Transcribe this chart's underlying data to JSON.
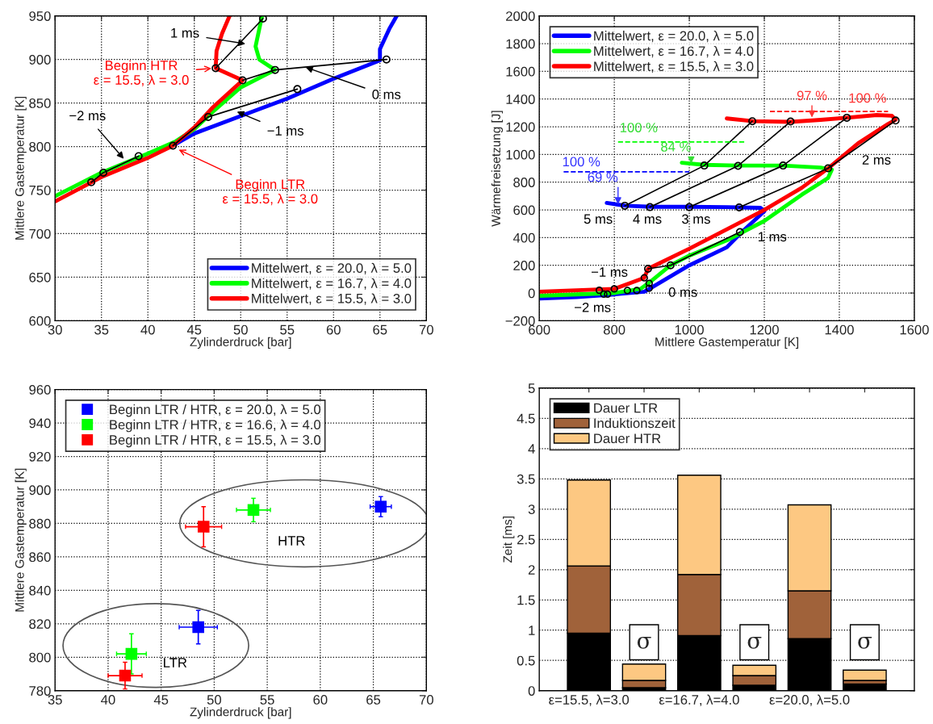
{
  "chart_data": [
    {
      "type": "line",
      "xlabel": "Zylinderdruck [bar]",
      "ylabel": "Mittlere Gastemperatur [K]",
      "xlim": [
        30,
        70
      ],
      "ylim": [
        600,
        950
      ],
      "xticks": [
        30,
        35,
        40,
        45,
        50,
        55,
        60,
        65,
        70
      ],
      "yticks": [
        600,
        650,
        700,
        750,
        800,
        850,
        900,
        950
      ],
      "grid": true,
      "legend": "bottom right",
      "series": [
        {
          "name": "Mittelwert, ε = 20.0, λ = 5.0",
          "color": "#0000ff",
          "x": [
            43,
            45,
            50,
            55,
            60,
            65,
            65,
            66,
            66.8
          ],
          "values": [
            803,
            815,
            835,
            855,
            878,
            899,
            912,
            935,
            950
          ]
        },
        {
          "name": "Mittelwert, ε = 16.7, λ = 4.0",
          "color": "#00ff00",
          "x": [
            30,
            35,
            40,
            43,
            45,
            47,
            50,
            53.7,
            52,
            51.6,
            52.3
          ],
          "values": [
            743,
            770,
            792,
            806,
            820,
            840,
            868,
            888,
            900,
            915,
            950
          ]
        },
        {
          "name": "Mittelwert, ε = 15.5, λ = 3.0",
          "color": "#ff0000",
          "x": [
            30,
            35,
            40,
            42.7,
            45,
            47,
            50.2,
            47.3,
            47.4,
            48,
            48.8
          ],
          "values": [
            737,
            765,
            787,
            801,
            822,
            845,
            876,
            890,
            910,
            930,
            950
          ]
        },
        {
          "type": "line",
          "color": "#000000",
          "marker": "circle",
          "x": [
            33.9,
            35.2,
            39
          ],
          "values": [
            759,
            770,
            789
          ]
        },
        {
          "type": "line",
          "color": "#000000",
          "marker": "circle",
          "x": [
            42.7,
            46.5,
            56.1
          ],
          "values": [
            801,
            834,
            866
          ]
        },
        {
          "type": "line",
          "color": "#000000",
          "marker": "circle",
          "x": [
            50.2,
            53.7,
            65.7
          ],
          "values": [
            876,
            888,
            900
          ]
        },
        {
          "type": "line",
          "color": "#000000",
          "marker": "circle",
          "x": [
            47.3,
            52.4
          ],
          "values": [
            890,
            947
          ]
        }
      ],
      "annotations": [
        {
          "text": "1 ms",
          "x": 50.5,
          "y": 918
        },
        {
          "text": "Beginn HTR\nε = 15.5, λ = 3.0",
          "x": 47.2,
          "y": 890
        },
        {
          "text": "0 ms",
          "x": 57,
          "y": 891
        },
        {
          "text": "−1 ms",
          "x": 49.6,
          "y": 840
        },
        {
          "text": "−2 ms",
          "x": 37.4,
          "y": 786
        },
        {
          "text": "Beginn LTR\nε = 15.5, λ = 3.0",
          "x": 43,
          "y": 798
        }
      ]
    },
    {
      "type": "line",
      "xlabel": "Mittlere Gastemperatur [K]",
      "ylabel": "Wärmefreisetzung [J]",
      "xlim": [
        600,
        1600
      ],
      "ylim": [
        -200,
        2000
      ],
      "xticks": [
        600,
        800,
        1000,
        1200,
        1400,
        1600
      ],
      "yticks": [
        {
          "value": -200,
          "label": "−200"
        },
        0,
        200,
        400,
        600,
        800,
        1000,
        1200,
        1400,
        1600,
        1800,
        2000
      ],
      "grid": true,
      "legend": "top left",
      "series": [
        {
          "name": "Mittelwert, ε = 20.0, λ = 5.0",
          "color": "#0000ff",
          "x": [
            600,
            700,
            800,
            880,
            900,
            950,
            1000,
            1100,
            1140,
            1200,
            1190,
            1100,
            1000,
            900,
            830,
            780
          ],
          "values": [
            -40,
            -30,
            -10,
            10,
            40,
            120,
            200,
            330,
            440,
            590,
            615,
            620,
            622,
            622,
            630,
            650
          ]
        },
        {
          "name": "Mittelwert, ε = 16.7, λ = 4.0",
          "color": "#00ff00",
          "x": [
            600,
            700,
            800,
            870,
            900,
            950,
            1000,
            1100,
            1200,
            1300,
            1370,
            1380,
            1350,
            1250,
            1130,
            1040,
            980
          ],
          "values": [
            -20,
            -10,
            0,
            30,
            90,
            200,
            270,
            380,
            520,
            710,
            830,
            890,
            905,
            920,
            920,
            925,
            940
          ]
        },
        {
          "name": "Mittelwert, ε = 15.5, λ = 3.0",
          "color": "#ff0000",
          "x": [
            600,
            700,
            800,
            880,
            890,
            1000,
            1100,
            1200,
            1300,
            1370,
            1450,
            1530,
            1550,
            1540,
            1500,
            1420,
            1350,
            1270,
            1170,
            1100
          ],
          "values": [
            10,
            20,
            30,
            110,
            175,
            320,
            460,
            600,
            760,
            900,
            1080,
            1220,
            1250,
            1280,
            1285,
            1265,
            1250,
            1235,
            1240,
            1260
          ]
        },
        {
          "type": "line",
          "color": "#000000",
          "marker": "circle",
          "x": [
            828,
            1040,
            1168
          ],
          "values": [
            630,
            920,
            1240
          ]
        },
        {
          "type": "line",
          "color": "#000000",
          "marker": "circle",
          "x": [
            895,
            1130,
            1270
          ],
          "values": [
            620,
            918,
            1238
          ]
        },
        {
          "type": "line",
          "color": "#000000",
          "marker": "circle",
          "x": [
            1000,
            1250,
            1420
          ],
          "values": [
            620,
            920,
            1265
          ]
        },
        {
          "type": "line",
          "color": "#000000",
          "marker": "circle",
          "x": [
            1133,
            1370,
            1550
          ],
          "values": [
            618,
            900,
            1245
          ]
        },
        {
          "type": "line",
          "color": "#000000",
          "marker": "circle",
          "x": [
            890,
            950,
            1135
          ],
          "values": [
            175,
            200,
            440
          ]
        },
        {
          "type": "scatter",
          "color": "#000000",
          "marker": "circle",
          "x": [
            760,
            772,
            782,
            800,
            835,
            860,
            880,
            893,
            893
          ],
          "values": [
            20,
            -8,
            -8,
            30,
            18,
            18,
            110,
            70,
            35
          ]
        },
        {
          "type": "line",
          "color": "#0000ff",
          "line_style": "dashed",
          "x": [
            665,
            1000
          ],
          "values": [
            875,
            875
          ]
        },
        {
          "type": "line",
          "color": "#00ff00",
          "line_style": "dashed",
          "x": [
            810,
            1150
          ],
          "values": [
            1090,
            1090
          ]
        },
        {
          "type": "line",
          "color": "#ff0000",
          "line_style": "dashed",
          "x": [
            1215,
            1530
          ],
          "values": [
            1310,
            1310
          ]
        }
      ],
      "annotations": [
        "100 %",
        {
          "text": "69 %",
          "x": 810,
          "y": 640
        },
        "100 %",
        {
          "text": "84 %",
          "x": 1005,
          "y": 935
        },
        {
          "text": "97 %",
          "x": 1327,
          "y": 1267
        },
        "100 %",
        "5 ms",
        "4 ms",
        "3 ms",
        "2 ms",
        "1 ms",
        "0 ms",
        "−1 ms",
        "−2 ms"
      ]
    },
    {
      "type": "scatter",
      "xlabel": "Zylinderdruck [bar]",
      "ylabel": "Mittlere Gastemperatur [K]",
      "xlim": [
        35,
        70
      ],
      "ylim": [
        780,
        960
      ],
      "xticks": [
        35,
        40,
        45,
        50,
        55,
        60,
        65,
        70
      ],
      "yticks": [
        780,
        800,
        820,
        840,
        860,
        880,
        900,
        920,
        940,
        960
      ],
      "grid": true,
      "legend": "top left",
      "marker": "square",
      "series": [
        {
          "name": "Beginn LTR / HTR, ε = 20.0, λ = 5.0",
          "color": "#0000ff",
          "x": [
            48.5,
            65.7
          ],
          "values": [
            818,
            890
          ],
          "errors": [
            10,
            6
          ],
          "xerrors": [
            1.8,
            1
          ]
        },
        {
          "name": "Beginn LTR / HTR, ε = 16.6, λ = 4.0",
          "color": "#00ff00",
          "x": [
            42.2,
            53.7
          ],
          "values": [
            802,
            888
          ],
          "errors": [
            12,
            7
          ],
          "xerrors": [
            1.4,
            1.6
          ]
        },
        {
          "name": "Beginn LTR / HTR, ε = 15.5, λ = 3.0",
          "color": "#ff0000",
          "x": [
            41.6,
            49
          ],
          "values": [
            789,
            878
          ],
          "errors": [
            8,
            12
          ],
          "xerrors": [
            1.6,
            1.7
          ]
        }
      ],
      "annotations": [
        "HTR",
        "LTR"
      ]
    },
    {
      "type": "bar",
      "stacked": true,
      "ylabel": "Zeit [ms]",
      "ylim": [
        0,
        5
      ],
      "yticks": [
        0,
        0.5,
        1,
        1.5,
        2,
        2.5,
        3,
        3.5,
        4,
        4.5,
        5
      ],
      "grid": "y",
      "legend": "top left",
      "categories": [
        "ε=15.5, λ=3.0",
        null,
        "ε=16.7, λ=4.0",
        null,
        "ε=20.0, λ=5.0",
        null
      ],
      "series": [
        {
          "name": "Dauer LTR",
          "color": "#000000",
          "values": [
            0.95,
            0.05,
            0.91,
            0.09,
            0.86,
            0.11
          ]
        },
        {
          "name": "Induktionszeit",
          "color": "#a0623a",
          "values": [
            1.11,
            0.12,
            1.01,
            0.16,
            0.79,
            0.06
          ]
        },
        {
          "name": "Dauer HTR",
          "color": "#fdc882",
          "values": [
            1.42,
            0.27,
            1.64,
            0.17,
            1.42,
            0.17
          ]
        }
      ],
      "annotations": [
        "σ",
        "σ",
        "σ"
      ]
    }
  ]
}
